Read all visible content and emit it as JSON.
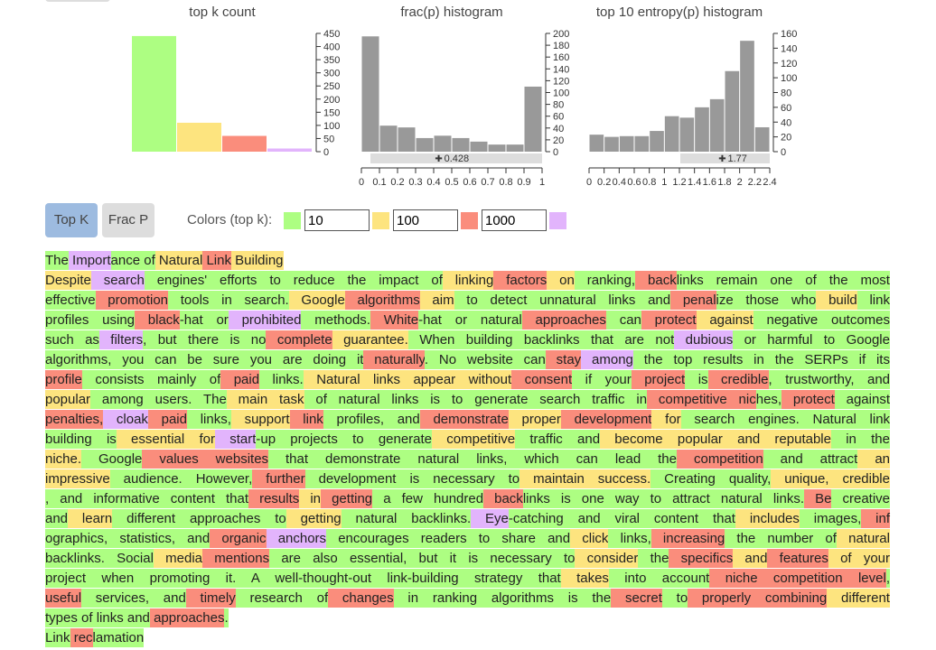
{
  "chart_data": [
    {
      "type": "bar",
      "title": "top k count",
      "values": [
        440,
        110,
        60,
        12
      ],
      "colors": [
        "#adfe82",
        "#fde47f",
        "#fa8d7c",
        "#e2b4fc"
      ],
      "ylim": [
        0,
        450
      ],
      "yticks": [
        0,
        50,
        100,
        150,
        200,
        250,
        300,
        350,
        400,
        450
      ]
    },
    {
      "type": "histogram",
      "title": "frac(p) histogram",
      "bins": [
        0,
        0.1,
        0.2,
        0.3,
        0.4,
        0.5,
        0.6,
        0.7,
        0.8,
        0.9,
        1
      ],
      "values": [
        195,
        44,
        41,
        23,
        27,
        23,
        17,
        12,
        12,
        110
      ],
      "color": "#999999",
      "xlim": [
        0,
        1
      ],
      "xticks": [
        0,
        0.1,
        0.2,
        0.3,
        0.4,
        0.5,
        0.6,
        0.7,
        0.8,
        0.9,
        1
      ],
      "ylim": [
        0,
        200
      ],
      "yticks": [
        0,
        20,
        40,
        60,
        80,
        100,
        120,
        140,
        160,
        180,
        200
      ],
      "marker": 0.428
    },
    {
      "type": "histogram",
      "title": "top 10 entropy(p) histogram",
      "bins": [
        0,
        0.2,
        0.4,
        0.6,
        0.8,
        1,
        1.2,
        1.4,
        1.6,
        1.8,
        2,
        2.2,
        2.4
      ],
      "values": [
        23,
        20,
        21,
        21,
        28,
        48,
        46,
        60,
        71,
        109,
        150,
        33
      ],
      "color": "#999999",
      "xlim": [
        0,
        2.4
      ],
      "xticks": [
        0,
        0.2,
        0.4,
        0.6,
        0.8,
        1,
        1.2,
        1.4,
        1.6,
        1.8,
        2,
        2.2,
        2.4
      ],
      "ylim": [
        0,
        160
      ],
      "yticks": [
        0,
        20,
        40,
        60,
        80,
        100,
        120,
        140,
        160
      ],
      "marker": 1.77
    }
  ],
  "controls": {
    "buttons": [
      "Top K",
      "Frac P"
    ],
    "colors_label": "Colors (top k):",
    "thresholds": [
      10,
      100,
      1000
    ]
  },
  "text": {
    "paragraphs": [
      {
        "lines": [
          [
            [
              "The",
              0
            ],
            [
              " Import",
              3
            ],
            [
              "ance of",
              0
            ],
            [
              " Natural",
              1
            ],
            [
              " Link",
              2
            ],
            [
              " Building",
              1
            ]
          ]
        ]
      },
      {
        "lines": [
          [
            [
              "Despite",
              1
            ],
            [
              " search",
              3
            ],
            [
              " engines' efforts to reduce the impact of",
              0
            ],
            [
              " linking",
              1
            ],
            [
              " factors",
              2
            ],
            [
              " on",
              1
            ],
            [
              " ranking,",
              0
            ],
            [
              " back",
              2
            ],
            [
              "links remain one of the most",
              0
            ]
          ],
          [
            [
              " effective",
              0
            ],
            [
              " promotion",
              2
            ],
            [
              " tools in search.",
              0
            ],
            [
              " Google",
              1
            ],
            [
              " algorithms",
              2
            ],
            [
              " aim",
              1
            ],
            [
              " to detect unnatural links and",
              0
            ],
            [
              " penal",
              2
            ],
            [
              "ize those who",
              0
            ],
            [
              " build",
              1
            ],
            [
              " link",
              0
            ]
          ],
          [
            [
              " profiles using",
              0
            ],
            [
              " black",
              2
            ],
            [
              "-hat or",
              0
            ],
            [
              " prohibited",
              3
            ],
            [
              " methods.",
              0
            ],
            [
              " White",
              2
            ],
            [
              "-hat or natural",
              0
            ],
            [
              " approaches",
              2
            ],
            [
              " can",
              0
            ],
            [
              " protect",
              2
            ],
            [
              " against",
              1
            ],
            [
              " negative outcomes",
              0
            ]
          ],
          [
            [
              " such as",
              0
            ],
            [
              " filters",
              3
            ],
            [
              ", but there is no",
              0
            ],
            [
              " complete",
              2
            ],
            [
              " guarantee.",
              1
            ],
            [
              " When building backlinks that are not",
              0
            ],
            [
              " dubious",
              3
            ],
            [
              " or harmful to Google",
              0
            ]
          ],
          [
            [
              " algorithms, you can be sure you are doing it",
              0
            ],
            [
              " naturally",
              2
            ],
            [
              ". No website can",
              0
            ],
            [
              " stay",
              2
            ],
            [
              " among",
              3
            ],
            [
              " the top results in the SERPs if its",
              0
            ]
          ],
          [
            [
              " profile",
              2
            ],
            [
              " consists mainly of",
              0
            ],
            [
              " paid",
              2
            ],
            [
              " links.",
              0
            ],
            [
              " Natural links appear without",
              1
            ],
            [
              " consent",
              2
            ],
            [
              " if your",
              0
            ],
            [
              " project",
              2
            ],
            [
              " is",
              0
            ],
            [
              " credible",
              2
            ],
            [
              ", trustworthy, and",
              0
            ]
          ],
          [
            [
              " popular",
              1
            ],
            [
              " among users. The",
              0
            ],
            [
              " main task",
              1
            ],
            [
              " of natural links is to generate search traffic in",
              0
            ],
            [
              " competitive nic",
              2
            ],
            [
              "hes,",
              0
            ],
            [
              " protect",
              2
            ],
            [
              " against",
              0
            ]
          ],
          [
            [
              " penalties,",
              2
            ],
            [
              " cloak",
              3
            ],
            [
              " paid",
              2
            ],
            [
              " links,",
              0
            ],
            [
              " support",
              1
            ],
            [
              " link",
              2
            ],
            [
              " profiles, and",
              0
            ],
            [
              " demonstrate",
              2
            ],
            [
              " proper",
              1
            ],
            [
              " development",
              2
            ],
            [
              " for",
              1
            ],
            [
              " search engines. Natural link",
              0
            ]
          ],
          [
            [
              " building is",
              0
            ],
            [
              " essential for",
              1
            ],
            [
              " start",
              3
            ],
            [
              "-up projects to generate",
              0
            ],
            [
              " competitive",
              1
            ],
            [
              " traffic and",
              0
            ],
            [
              " become popular and reputable",
              1
            ],
            [
              " in the",
              0
            ]
          ],
          [
            [
              " niche.",
              1
            ],
            [
              " Google",
              0
            ],
            [
              " values websites",
              2
            ],
            [
              " that demonstrate natural links, which can lead the",
              0
            ],
            [
              " competition",
              2
            ],
            [
              " and attract",
              0
            ],
            [
              " an",
              1
            ]
          ],
          [
            [
              " impressive",
              1
            ],
            [
              " audience. However,",
              0
            ],
            [
              " further",
              2
            ],
            [
              " development is necessary to",
              0
            ],
            [
              " maintain success.",
              1
            ],
            [
              " Creating quality,",
              0
            ],
            [
              " unique, credible",
              1
            ]
          ],
          [
            [
              ", and informative content that",
              0
            ],
            [
              " results",
              2
            ],
            [
              " in",
              1
            ],
            [
              " getting",
              2
            ],
            [
              " a few hundred",
              0
            ],
            [
              " back",
              2
            ],
            [
              "links is one way to attract natural links.",
              0
            ],
            [
              " Be",
              2
            ],
            [
              " creative",
              0
            ]
          ],
          [
            [
              " and",
              0
            ],
            [
              " learn",
              1
            ],
            [
              " different approaches to",
              0
            ],
            [
              " getting",
              1
            ],
            [
              " natural backlinks.",
              0
            ],
            [
              " Eye",
              3
            ],
            [
              "-catching and viral content that",
              0
            ],
            [
              " includes",
              1
            ],
            [
              " images,",
              0
            ],
            [
              " inf",
              2
            ]
          ],
          [
            [
              "ographics, statistics, and",
              0
            ],
            [
              " organic",
              2
            ],
            [
              " anchors",
              3
            ],
            [
              " encourages readers to share and",
              0
            ],
            [
              " click",
              1
            ],
            [
              " links,",
              0
            ],
            [
              " increasing",
              2
            ],
            [
              " the number of",
              0
            ],
            [
              " natural",
              1
            ]
          ],
          [
            [
              " backlinks. Social",
              0
            ],
            [
              " media",
              1
            ],
            [
              " mentions",
              2
            ],
            [
              " are also essential, but it is necessary to",
              0
            ],
            [
              " consider",
              1
            ],
            [
              " the",
              0
            ],
            [
              " specifics",
              2
            ],
            [
              " and",
              1
            ],
            [
              " features",
              2
            ],
            [
              " of your",
              1
            ]
          ],
          [
            [
              " project when promoting it. A well-thought-out link-building strategy that",
              0
            ],
            [
              " takes",
              1
            ],
            [
              " into account",
              0
            ],
            [
              " niche competition level",
              2
            ],
            [
              ",",
              0
            ]
          ],
          [
            [
              " useful",
              2
            ],
            [
              " services, and",
              0
            ],
            [
              " timely",
              2
            ],
            [
              " research of",
              0
            ],
            [
              " changes",
              2
            ],
            [
              " in ranking algorithms is the",
              0
            ],
            [
              " secret",
              2
            ],
            [
              " to",
              0
            ],
            [
              " properly combining",
              2
            ],
            [
              " different",
              1
            ]
          ],
          [
            [
              " types of links and",
              0
            ],
            [
              " approaches",
              2
            ],
            [
              ".",
              0
            ]
          ]
        ]
      },
      {
        "lines": [
          [
            [
              "Link",
              0
            ],
            [
              " rec",
              2
            ],
            [
              "lamation",
              0
            ]
          ]
        ]
      }
    ]
  }
}
